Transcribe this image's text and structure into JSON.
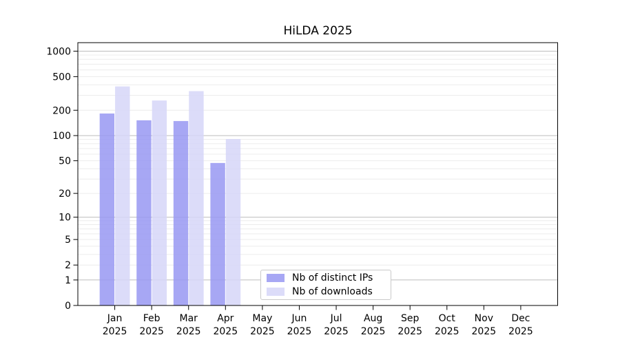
{
  "title": "HiLDA 2025",
  "legend": {
    "items": [
      {
        "label": "Nb of distinct IPs"
      },
      {
        "label": "Nb of downloads"
      }
    ]
  },
  "chart_data": {
    "type": "bar",
    "title": "HiLDA 2025",
    "categories": [
      "Jan",
      "Feb",
      "Mar",
      "Apr",
      "May",
      "Jun",
      "Jul",
      "Aug",
      "Sep",
      "Oct",
      "Nov",
      "Dec"
    ],
    "year_label": "2025",
    "series": [
      {
        "name": "Nb of distinct IPs",
        "color": "#9898f2",
        "values": [
          183,
          152,
          149,
          47,
          null,
          null,
          null,
          null,
          null,
          null,
          null,
          null
        ]
      },
      {
        "name": "Nb of downloads",
        "color": "#d6d6f8",
        "values": [
          383,
          261,
          337,
          91,
          null,
          null,
          null,
          null,
          null,
          null,
          null,
          null
        ]
      }
    ],
    "yscale": "log1p",
    "y_ticks": [
      0,
      1,
      2,
      5,
      10,
      20,
      50,
      100,
      200,
      500,
      1000
    ],
    "ylim": [
      0,
      1260
    ],
    "grid": {
      "major_lines": [
        1,
        10,
        100,
        1000
      ],
      "minor_grid": true
    },
    "legend_position": "lower-center",
    "colors": {
      "major_grid": "#bbbbbb",
      "minor_grid": "#ececec",
      "axis": "#000000",
      "bar_opacity": 0.85
    }
  }
}
